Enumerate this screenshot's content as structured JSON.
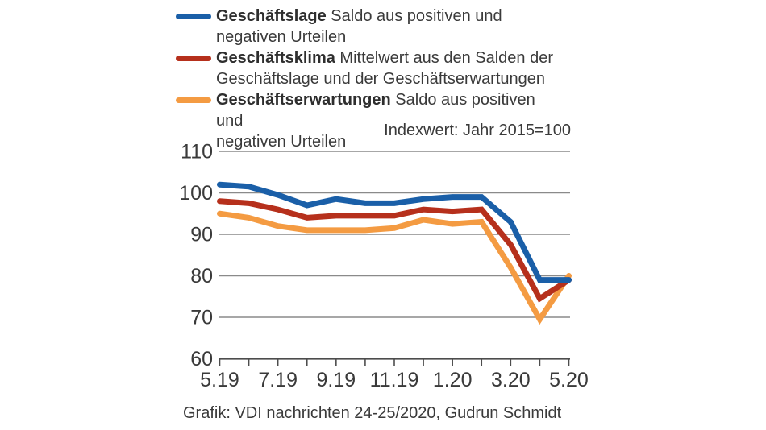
{
  "legend": {
    "items": [
      {
        "term": "Geschäftslage",
        "line1": "Saldo aus positiven und",
        "line2": "negativen Urteilen",
        "color": "#1a5fa8"
      },
      {
        "term": "Geschäftsklima",
        "line1": "Mittelwert aus den Salden der",
        "line2": "Geschäftslage und der Geschäftserwartungen",
        "color": "#b6301c"
      },
      {
        "term": "Geschäftserwartungen",
        "line1": "Saldo aus positiven und",
        "line2": "negativen Urteilen",
        "color": "#f49b42"
      }
    ]
  },
  "index_note": "Indexwert: Jahr 2015=100",
  "source": "Grafik: VDI nachrichten 24-25/2020, Gudrun Schmidt",
  "chart_data": {
    "type": "line",
    "x": [
      "5.19",
      "6.19",
      "7.19",
      "8.19",
      "9.19",
      "10.19",
      "11.19",
      "12.19",
      "1.20",
      "2.20",
      "3.20",
      "4.20",
      "5.20"
    ],
    "x_tick_labels": [
      "5.19",
      "7.19",
      "9.19",
      "11.19",
      "1.20",
      "3.20",
      "5.20"
    ],
    "y_ticks": [
      110,
      100,
      90,
      80,
      70,
      60
    ],
    "ylim": [
      60,
      110
    ],
    "grid": true,
    "legend_position": "top-left",
    "annotation": "Indexwert: Jahr 2015=100",
    "series": [
      {
        "name": "Geschäftslage",
        "color": "#1a5fa8",
        "values": [
          102,
          101.5,
          99.5,
          97,
          98.5,
          97.5,
          97.5,
          98.5,
          99,
          99,
          93,
          79,
          79
        ]
      },
      {
        "name": "Geschäftsklima",
        "color": "#b6301c",
        "values": [
          98,
          97.5,
          96,
          94,
          94.5,
          94.5,
          94.5,
          96,
          95.5,
          96,
          87.5,
          74.5,
          79
        ]
      },
      {
        "name": "Geschäftserwartungen",
        "color": "#f49b42",
        "values": [
          95,
          94,
          92,
          91,
          91,
          91,
          91.5,
          93.5,
          92.5,
          93,
          82,
          69.5,
          80
        ]
      }
    ]
  },
  "style": {
    "grid_color": "#8a8a8a",
    "axis_color": "#4d4d4d",
    "text_color": "#3a3a3a"
  }
}
